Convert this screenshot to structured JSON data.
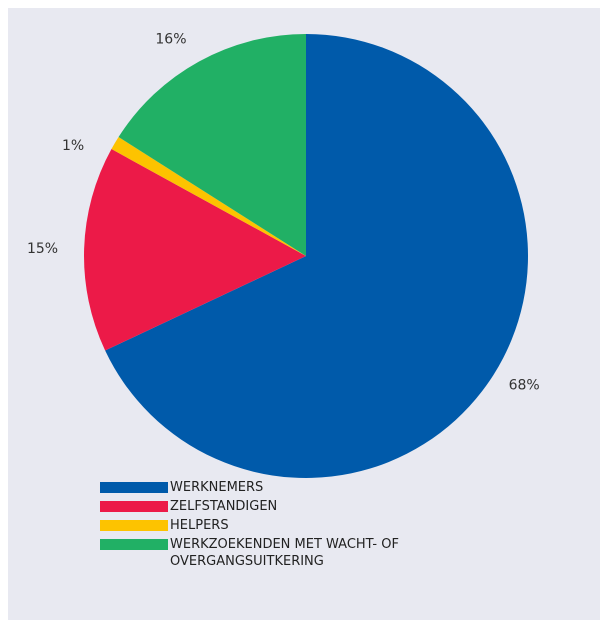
{
  "chart_data": {
    "type": "pie",
    "slices": [
      {
        "label": "WERKNEMERS",
        "value": 68,
        "value_label": "68%",
        "color": "#005aaa"
      },
      {
        "label": "ZELFSTANDIGEN",
        "value": 15,
        "value_label": "15%",
        "color": "#ec1a48"
      },
      {
        "label": "HELPERS",
        "value": 1,
        "value_label": "1%",
        "color": "#fdc300"
      },
      {
        "label": "WERKZOEKENDEN MET WACHT- OF OVERGANGSUITKERING",
        "value": 16,
        "value_label": "16%",
        "color": "#21b065"
      }
    ],
    "legend_position": "bottom-left",
    "start_angle": "top",
    "direction": "clockwise"
  }
}
